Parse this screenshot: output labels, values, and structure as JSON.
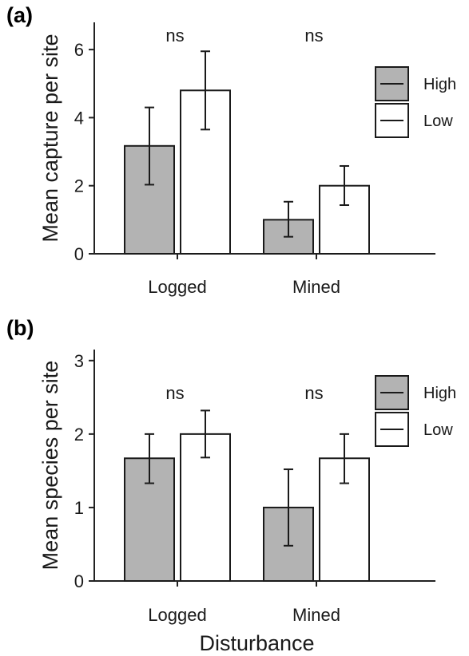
{
  "chart_data": [
    {
      "panel_label": "(a)",
      "type": "bar",
      "categories": [
        "Logged",
        "Mined"
      ],
      "ylabel": "Mean capture per site",
      "xlabel": "",
      "ylim": [
        0,
        6.8
      ],
      "yticks": [
        0,
        2,
        4,
        6
      ],
      "legend_position": "right",
      "series": [
        {
          "name": "High",
          "color": "#b3b3b3",
          "values": [
            3.17,
            1.0
          ],
          "err_low": [
            2.03,
            0.5
          ],
          "err_high": [
            4.3,
            1.53
          ]
        },
        {
          "name": "Low",
          "color": "#ffffff",
          "values": [
            4.8,
            2.0
          ],
          "err_low": [
            3.65,
            1.43
          ],
          "err_high": [
            5.95,
            2.58
          ]
        }
      ],
      "annotations": [
        "ns",
        "ns"
      ]
    },
    {
      "panel_label": "(b)",
      "type": "bar",
      "categories": [
        "Logged",
        "Mined"
      ],
      "ylabel": "Mean species per site",
      "xlabel": "Disturbance",
      "ylim": [
        0,
        3.15
      ],
      "yticks": [
        0,
        1,
        2,
        3
      ],
      "legend_position": "right",
      "series": [
        {
          "name": "High",
          "color": "#b3b3b3",
          "values": [
            1.67,
            1.0
          ],
          "err_low": [
            1.33,
            0.48
          ],
          "err_high": [
            2.0,
            1.52
          ]
        },
        {
          "name": "Low",
          "color": "#ffffff",
          "values": [
            2.0,
            1.67
          ],
          "err_low": [
            1.68,
            1.33
          ],
          "err_high": [
            2.32,
            2.0
          ]
        }
      ],
      "annotations": [
        "ns",
        "ns"
      ]
    }
  ]
}
